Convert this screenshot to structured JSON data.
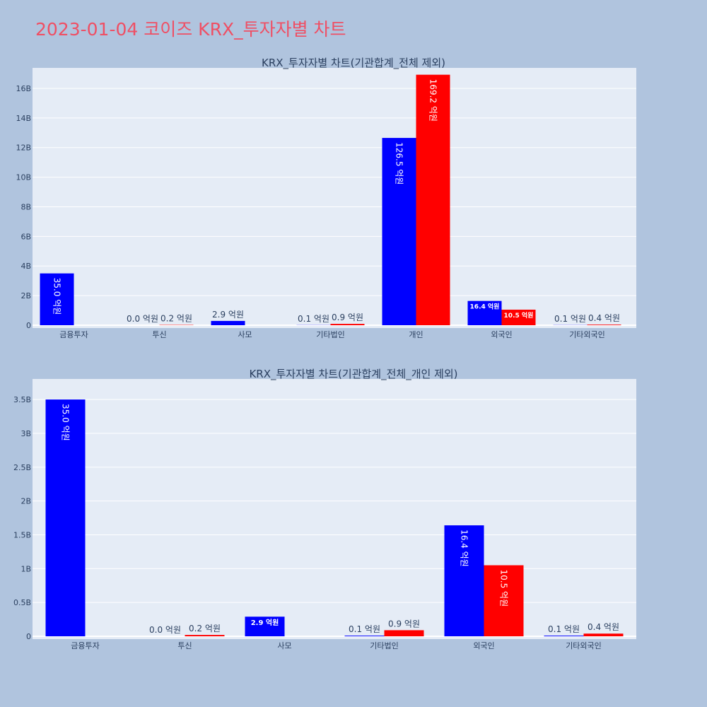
{
  "page": {
    "title": "2023-01-04 코이즈 KRX_투자자별 차트"
  },
  "colors": {
    "buy": "#0000ff",
    "sell": "#ff0000",
    "plot_bg": "#e5ecf6",
    "paper_bg": "#b0c4de",
    "title": "#ef4f64"
  },
  "chart_data": [
    {
      "type": "bar",
      "title": "KRX_투자자별 차트(기관합계_전체 제외)",
      "xlabel": "",
      "ylabel": "",
      "ylim": [
        0,
        17000000000
      ],
      "yticks": [
        0,
        2000000000,
        4000000000,
        6000000000,
        8000000000,
        10000000000,
        12000000000,
        14000000000,
        16000000000
      ],
      "ytick_labels": [
        "0",
        "2B",
        "4B",
        "6B",
        "8B",
        "10B",
        "12B",
        "14B",
        "16B"
      ],
      "grid": true,
      "categories": [
        "금융투자",
        "투신",
        "사모",
        "기타법인",
        "개인",
        "외국인",
        "기타외국인"
      ],
      "series": [
        {
          "color": "#0000ff",
          "values": [
            3500000000,
            0,
            290000000,
            10000000,
            12650000000,
            1640000000,
            10000000
          ],
          "labels": [
            "35.0 억원",
            "0.0 억원",
            "2.9 억원",
            "0.1 억원",
            "126.5 억원",
            "16.4 억원",
            "0.1 억원"
          ]
        },
        {
          "color": "#ff0000",
          "values": [
            0,
            20000000,
            0,
            90000000,
            16920000000,
            1050000000,
            40000000
          ],
          "labels": [
            "",
            "0.2 억원",
            "",
            "0.9 억원",
            "169.2 억원",
            "10.5 억원",
            "0.4 억원"
          ]
        }
      ]
    },
    {
      "type": "bar",
      "title": "KRX_투자자별 차트(기관합계_전체_개인 제외)",
      "xlabel": "",
      "ylabel": "",
      "ylim": [
        0,
        3720000000
      ],
      "yticks": [
        0,
        500000000,
        1000000000,
        1500000000,
        2000000000,
        2500000000,
        3000000000,
        3500000000
      ],
      "ytick_labels": [
        "0",
        "0.5B",
        "1B",
        "1.5B",
        "2B",
        "2.5B",
        "3B",
        "3.5B"
      ],
      "grid": true,
      "categories": [
        "금융투자",
        "투신",
        "사모",
        "기타법인",
        "외국인",
        "기타외국인"
      ],
      "series": [
        {
          "color": "#0000ff",
          "values": [
            3500000000,
            0,
            290000000,
            10000000,
            1640000000,
            10000000
          ],
          "labels": [
            "35.0 억원",
            "0.0 억원",
            "2.9 억원",
            "0.1 억원",
            "16.4 억원",
            "0.1 억원"
          ]
        },
        {
          "color": "#ff0000",
          "values": [
            0,
            20000000,
            0,
            90000000,
            1050000000,
            40000000
          ],
          "labels": [
            "",
            "0.2 억원",
            "",
            "0.9 억원",
            "10.5 억원",
            "0.4 억원"
          ]
        }
      ]
    }
  ]
}
